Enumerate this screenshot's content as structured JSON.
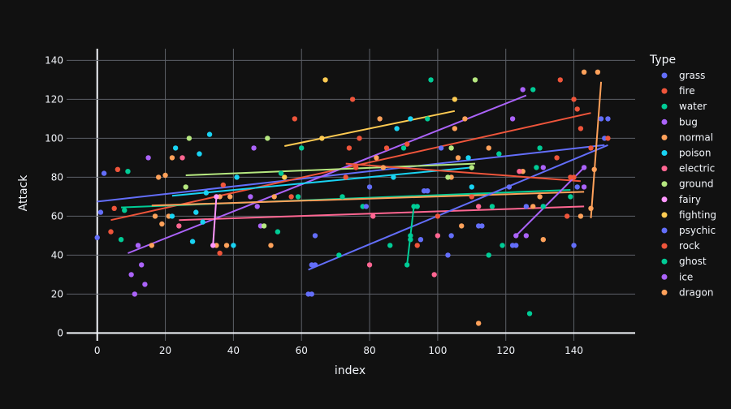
{
  "chart_data": {
    "type": "scatter",
    "title": "",
    "xlabel": "index",
    "ylabel": "Attack",
    "xlim": [
      -9,
      158
    ],
    "ylim": [
      -4,
      146
    ],
    "x_ticks": [
      0,
      20,
      40,
      60,
      80,
      100,
      120,
      140
    ],
    "y_ticks": [
      0,
      20,
      40,
      60,
      80,
      100,
      120,
      140
    ],
    "grid": true,
    "legend_title": "Type",
    "legend_position": "right",
    "series": [
      {
        "name": "grass",
        "color": "#636efa",
        "points": [
          [
            0,
            49
          ],
          [
            1,
            62
          ],
          [
            2,
            82
          ],
          [
            62,
            20
          ],
          [
            63,
            35
          ],
          [
            64,
            50
          ],
          [
            103,
            40
          ],
          [
            104,
            50
          ],
          [
            112,
            55
          ],
          [
            113,
            55
          ],
          [
            122,
            45
          ],
          [
            126,
            65
          ],
          [
            131,
            65
          ],
          [
            140,
            45
          ],
          [
            141,
            75
          ],
          [
            148,
            110
          ],
          [
            149,
            100
          ]
        ],
        "trend": [
          [
            0,
            67.5
          ],
          [
            149,
            96.5
          ]
        ]
      },
      {
        "name": "fire",
        "color": "#EF553B",
        "points": [
          [
            4,
            52
          ],
          [
            5,
            64
          ],
          [
            6,
            84
          ],
          [
            36,
            41
          ],
          [
            37,
            76
          ],
          [
            57,
            70
          ],
          [
            58,
            110
          ],
          [
            76,
            85
          ],
          [
            77,
            100
          ],
          [
            85,
            95
          ],
          [
            91,
            97
          ],
          [
            100,
            60
          ],
          [
            135,
            90
          ],
          [
            140,
            120
          ],
          [
            145,
            95
          ],
          [
            150,
            100
          ]
        ],
        "trend": [
          [
            4,
            58
          ],
          [
            145,
            113
          ]
        ]
      },
      {
        "name": "water",
        "color": "#00cc96",
        "points": [
          [
            7,
            48
          ],
          [
            8,
            63
          ],
          [
            9,
            83
          ],
          [
            53,
            52
          ],
          [
            54,
            82
          ],
          [
            59,
            70
          ],
          [
            60,
            95
          ],
          [
            71,
            40
          ],
          [
            72,
            70
          ],
          [
            78,
            65
          ],
          [
            86,
            45
          ],
          [
            90,
            95
          ],
          [
            92,
            48
          ],
          [
            94,
            65
          ],
          [
            97,
            110
          ],
          [
            98,
            130
          ],
          [
            115,
            40
          ],
          [
            116,
            65
          ],
          [
            118,
            92
          ],
          [
            119,
            45
          ],
          [
            127,
            10
          ],
          [
            128,
            125
          ],
          [
            129,
            85
          ],
          [
            130,
            95
          ],
          [
            131,
            65
          ],
          [
            139,
            70
          ]
        ],
        "trend": [
          [
            7,
            64.5
          ],
          [
            139,
            73.5
          ]
        ]
      },
      {
        "name": "bug",
        "color": "#ab63fa",
        "points": [
          [
            10,
            30
          ],
          [
            11,
            20
          ],
          [
            12,
            45
          ],
          [
            13,
            35
          ],
          [
            14,
            25
          ],
          [
            15,
            90
          ],
          [
            45,
            70
          ],
          [
            46,
            95
          ],
          [
            47,
            65
          ],
          [
            48,
            55
          ],
          [
            122,
            110
          ],
          [
            125,
            125
          ],
          [
            126,
            50
          ],
          [
            131,
            85
          ],
          [
            143,
            75
          ]
        ],
        "trend": [
          [
            9,
            41
          ],
          [
            126,
            122
          ]
        ]
      },
      {
        "name": "normal",
        "color": "#FFA15A",
        "points": [
          [
            16,
            45
          ],
          [
            17,
            60
          ],
          [
            18,
            80
          ],
          [
            19,
            56
          ],
          [
            20,
            81
          ],
          [
            21,
            60
          ],
          [
            22,
            90
          ],
          [
            35,
            45
          ],
          [
            36,
            70
          ],
          [
            38,
            45
          ],
          [
            39,
            70
          ],
          [
            51,
            45
          ],
          [
            52,
            70
          ],
          [
            82,
            90
          ],
          [
            83,
            110
          ],
          [
            84,
            85
          ],
          [
            104,
            80
          ],
          [
            105,
            105
          ],
          [
            106,
            90
          ],
          [
            107,
            55
          ],
          [
            108,
            110
          ],
          [
            112,
            5
          ],
          [
            115,
            95
          ],
          [
            125,
            83
          ],
          [
            128,
            65
          ],
          [
            130,
            70
          ],
          [
            131,
            48
          ],
          [
            142,
            60
          ],
          [
            143,
            134
          ]
        ],
        "trend": [
          [
            16,
            65.5
          ],
          [
            143,
            72.5
          ]
        ]
      },
      {
        "name": "poison",
        "color": "#19d3f3",
        "points": [
          [
            22,
            60
          ],
          [
            23,
            95
          ],
          [
            28,
            47
          ],
          [
            29,
            62
          ],
          [
            30,
            92
          ],
          [
            31,
            57
          ],
          [
            32,
            72
          ],
          [
            33,
            102
          ],
          [
            40,
            45
          ],
          [
            41,
            80
          ],
          [
            87,
            80
          ],
          [
            88,
            105
          ],
          [
            92,
            110
          ],
          [
            109,
            90
          ],
          [
            110,
            75
          ]
        ],
        "trend": [
          [
            22,
            70.5
          ],
          [
            110,
            85
          ]
        ]
      },
      {
        "name": "electric",
        "color": "#FF6692",
        "points": [
          [
            24,
            55
          ],
          [
            25,
            90
          ],
          [
            80,
            35
          ],
          [
            81,
            60
          ],
          [
            99,
            30
          ],
          [
            100,
            50
          ],
          [
            112,
            65
          ],
          [
            124,
            83
          ]
        ],
        "trend": [
          [
            24,
            58
          ],
          [
            143,
            65
          ]
        ]
      },
      {
        "name": "ground",
        "color": "#B6E880",
        "points": [
          [
            26,
            75
          ],
          [
            27,
            100
          ],
          [
            49,
            55
          ],
          [
            50,
            100
          ],
          [
            103,
            80
          ],
          [
            104,
            95
          ],
          [
            110,
            85
          ],
          [
            111,
            130
          ]
        ],
        "trend": [
          [
            26,
            81
          ],
          [
            111,
            87
          ]
        ]
      },
      {
        "name": "fairy",
        "color": "#FF97FF",
        "points": [
          [
            34,
            45
          ],
          [
            35,
            70
          ]
        ],
        "trend": [
          [
            34,
            45
          ],
          [
            35,
            70
          ]
        ]
      },
      {
        "name": "fighting",
        "color": "#FECB52",
        "points": [
          [
            55,
            80
          ],
          [
            66,
            100
          ],
          [
            67,
            130
          ],
          [
            105,
            120
          ]
        ],
        "trend": [
          [
            55,
            96
          ],
          [
            105,
            114
          ]
        ]
      },
      {
        "name": "psychic",
        "color": "#636efa",
        "points": [
          [
            63,
            20
          ],
          [
            64,
            35
          ],
          [
            79,
            65
          ],
          [
            80,
            75
          ],
          [
            95,
            48
          ],
          [
            96,
            73
          ],
          [
            97,
            73
          ],
          [
            101,
            95
          ],
          [
            121,
            75
          ],
          [
            123,
            45
          ],
          [
            150,
            110
          ]
        ],
        "trend": [
          [
            62,
            32.5
          ],
          [
            150,
            96.5
          ]
        ]
      },
      {
        "name": "rock",
        "color": "#EF553B",
        "points": [
          [
            73,
            80
          ],
          [
            74,
            95
          ],
          [
            75,
            120
          ],
          [
            94,
            45
          ],
          [
            110,
            70
          ],
          [
            136,
            130
          ],
          [
            138,
            60
          ],
          [
            139,
            80
          ],
          [
            140,
            80
          ],
          [
            141,
            115
          ],
          [
            142,
            105
          ]
        ],
        "trend": [
          [
            73,
            87
          ],
          [
            142,
            78
          ]
        ]
      },
      {
        "name": "ghost",
        "color": "#00cc96",
        "points": [
          [
            91,
            35
          ],
          [
            92,
            50
          ],
          [
            93,
            65
          ]
        ],
        "trend": [
          [
            91,
            35
          ],
          [
            93,
            65
          ]
        ]
      },
      {
        "name": "ice",
        "color": "#ab63fa",
        "points": [
          [
            123,
            50
          ],
          [
            143,
            85
          ]
        ],
        "trend": [
          [
            123,
            50
          ],
          [
            143,
            85
          ]
        ]
      },
      {
        "name": "dragon",
        "color": "#FFA15A",
        "points": [
          [
            145,
            64
          ],
          [
            146,
            84
          ],
          [
            147,
            134
          ]
        ],
        "trend": [
          [
            145,
            59
          ],
          [
            148,
            129
          ]
        ]
      }
    ]
  }
}
